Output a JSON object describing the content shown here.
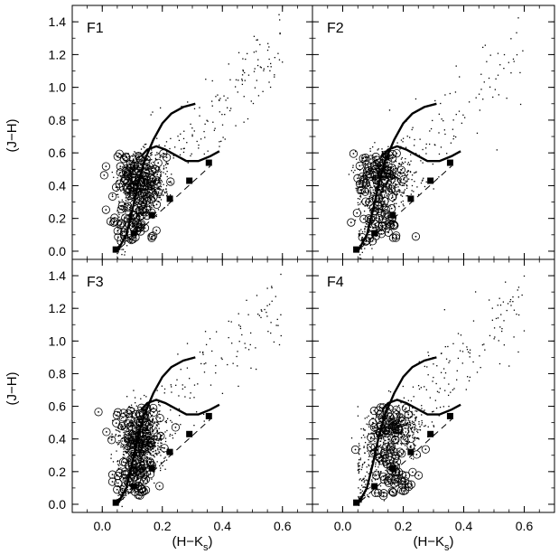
{
  "chart_data": {
    "type": "scatter",
    "layout": "2x2 panels, shared axes",
    "xlabel_main": "(H−K",
    "xlabel_sub": "s",
    "xlabel_close": ")",
    "ylabel": "(J−H)",
    "xlim": [
      -0.1,
      0.7
    ],
    "ylim": [
      -0.05,
      1.5
    ],
    "xticks": [
      0.0,
      0.2,
      0.4,
      0.6
    ],
    "xtick_labels": [
      "0.0",
      "0.2",
      "0.4",
      "0.6"
    ],
    "yticks": [
      0.0,
      0.2,
      0.4,
      0.6,
      0.8,
      1.0,
      1.2,
      1.4
    ],
    "ytick_labels": [
      "0.0",
      "0.2",
      "0.4",
      "0.6",
      "0.8",
      "1.0",
      "1.2",
      "1.4"
    ],
    "panels": [
      {
        "label": "F1",
        "position": "top-left",
        "cluster": {
          "cx": 0.13,
          "cy": 0.42,
          "sx": 0.035,
          "sy": 0.085,
          "n": 900
        },
        "spread": {
          "n": 260
        },
        "circles": {
          "n": 130
        }
      },
      {
        "label": "F2",
        "position": "top-right",
        "cluster": {
          "cx": 0.14,
          "cy": 0.44,
          "sx": 0.04,
          "sy": 0.07,
          "n": 650
        },
        "spread": {
          "n": 200
        },
        "circles": {
          "n": 110
        }
      },
      {
        "label": "F3",
        "position": "bottom-left",
        "cluster": {
          "cx": 0.13,
          "cy": 0.4,
          "sx": 0.035,
          "sy": 0.09,
          "n": 1000
        },
        "spread": {
          "n": 220
        },
        "circles": {
          "n": 120
        }
      },
      {
        "label": "F4",
        "position": "bottom-right",
        "cluster": {
          "cx": 0.18,
          "cy": 0.46,
          "sx": 0.045,
          "sy": 0.06,
          "n": 500
        },
        "spread": {
          "n": 260
        },
        "circles": {
          "n": 110
        }
      }
    ],
    "overlays": {
      "giant_branch": [
        [
          0.05,
          0.0
        ],
        [
          0.08,
          0.1
        ],
        [
          0.1,
          0.25
        ],
        [
          0.12,
          0.42
        ],
        [
          0.14,
          0.55
        ],
        [
          0.17,
          0.68
        ],
        [
          0.2,
          0.78
        ],
        [
          0.23,
          0.84
        ],
        [
          0.27,
          0.88
        ],
        [
          0.31,
          0.9
        ]
      ],
      "dwarf_branch": [
        [
          0.13,
          0.58
        ],
        [
          0.15,
          0.62
        ],
        [
          0.18,
          0.64
        ],
        [
          0.21,
          0.62
        ],
        [
          0.25,
          0.58
        ],
        [
          0.28,
          0.55
        ],
        [
          0.32,
          0.55
        ],
        [
          0.36,
          0.58
        ],
        [
          0.39,
          0.61
        ]
      ],
      "ctts_locus": [
        [
          0.06,
          0.02
        ],
        [
          0.36,
          0.52
        ]
      ],
      "ctts_markers": [
        [
          0.045,
          0.01
        ],
        [
          0.105,
          0.11
        ],
        [
          0.165,
          0.22
        ],
        [
          0.225,
          0.32
        ],
        [
          0.29,
          0.43
        ],
        [
          0.355,
          0.54
        ]
      ]
    }
  }
}
